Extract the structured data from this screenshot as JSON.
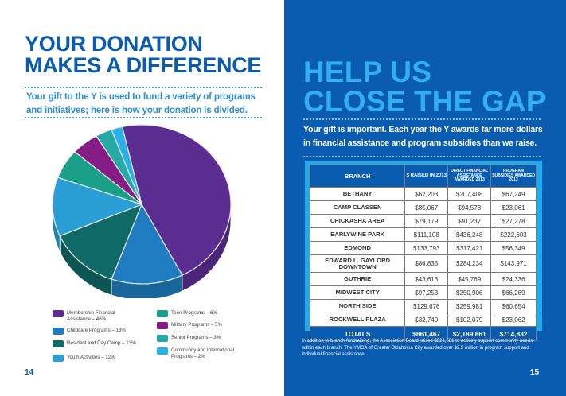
{
  "left_page": {
    "title_lines": [
      "YOUR DONATION",
      "MAKES A DIFFERENCE"
    ],
    "subtitle": "Your gift to the Y is used to fund a variety of programs and initiatives; here is how your donation is divided.",
    "page_number": "14"
  },
  "chart_data": {
    "type": "pie",
    "title": "",
    "slices": [
      {
        "label": "Membership Financial Assistance – 46%",
        "name": "Membership Financial Assistance",
        "value": 46,
        "color": "#5b2d91"
      },
      {
        "label": "Childcare Programs – 13%",
        "name": "Childcare Programs",
        "value": 13,
        "color": "#1f7cc0"
      },
      {
        "label": "Resident and Day Camp – 13%",
        "name": "Resident and Day Camp",
        "value": 13,
        "color": "#0f6a66"
      },
      {
        "label": "Youth Activities – 12%",
        "name": "Youth Activities",
        "value": 12,
        "color": "#2a9fd6"
      },
      {
        "label": "Teen Programs – 6%",
        "name": "Teen Programs",
        "value": 6,
        "color": "#1aa089"
      },
      {
        "label": "Military Programs – 5%",
        "name": "Military Programs",
        "value": 5,
        "color": "#861c86"
      },
      {
        "label": "Senior Programs – 3%",
        "name": "Senior Programs",
        "value": 3,
        "color": "#26aaa8"
      },
      {
        "label": "Community and International Programs – 2%",
        "name": "Community and International Programs",
        "value": 2,
        "color": "#2cb0e8"
      }
    ],
    "legend_position": "bottom"
  },
  "right_page": {
    "title_lines": [
      "HELP US",
      "CLOSE THE GAP"
    ],
    "subtitle": "Your gift is important.  Each year the Y awards far more dollars in financial assistance and program subsidies than we raise.",
    "table": {
      "headers": [
        "BRANCH",
        "$ RAISED IN 2013",
        "DIRECT FINANCIAL ASSISTANCE AWARDED 2013",
        "PROGRAM SUBSIDIES AWARDED 2013"
      ],
      "rows": [
        [
          "BETHANY",
          "$62,203",
          "$207,408",
          "$67,249"
        ],
        [
          "CAMP CLASSEN",
          "$85,067",
          "$94,578",
          "$23,061"
        ],
        [
          "CHICKASHA AREA",
          "$79,179",
          "$91,237",
          "$27,278"
        ],
        [
          "EARLYWINE PARK",
          "$111,108",
          "$436,248",
          "$222,603"
        ],
        [
          "EDMOND",
          "$133,793",
          "$317,421",
          "$56,349"
        ],
        [
          "EDWARD L. GAYLORD DOWNTOWN",
          "$86,835",
          "$284,234",
          "$143,971"
        ],
        [
          "GUTHRIE",
          "$43,613",
          "$45,769",
          "$24,336"
        ],
        [
          "MIDWEST CITY",
          "$97,253",
          "$350,906",
          "$66,269"
        ],
        [
          "NORTH SIDE",
          "$129,676",
          "$259,981",
          "$60,654"
        ],
        [
          "ROCKWELL PLAZA",
          "$32,740",
          "$102,079",
          "$23,062"
        ]
      ],
      "totals": [
        "TOTALS",
        "$861,467",
        "$2,189,861",
        "$714,832"
      ]
    },
    "footnote": "In addition to branch fundraising, the Association Board raised $321,581 to actively support community needs within each branch.  The YMCA of Greater Oklahoma City awarded over $2.9 million in program support and individual financial assistance.",
    "page_number": "15"
  }
}
